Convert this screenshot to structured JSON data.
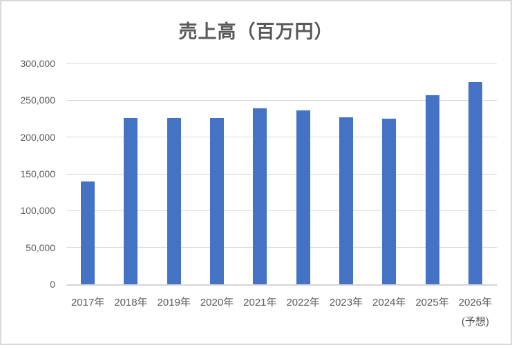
{
  "chart_data": {
    "type": "bar",
    "title": "売上高（百万円）",
    "categories": [
      "2017年",
      "2018年",
      "2019年",
      "2020年",
      "2021年",
      "2022年",
      "2023年",
      "2024年",
      "2025年",
      "2026年"
    ],
    "category_note": {
      "index": 9,
      "label": "(予想)"
    },
    "values": [
      140000,
      226000,
      226000,
      226000,
      239000,
      236000,
      227000,
      225000,
      257000,
      275000
    ],
    "series_name": "売上高",
    "xlabel": "",
    "ylabel": "",
    "ylim": [
      0,
      300000
    ],
    "yticks": [
      {
        "value": 0,
        "label": "0"
      },
      {
        "value": 50000,
        "label": "50,000"
      },
      {
        "value": 100000,
        "label": "100,000"
      },
      {
        "value": 150000,
        "label": "150,000"
      },
      {
        "value": 200000,
        "label": "200,000"
      },
      {
        "value": 250000,
        "label": "250,000"
      },
      {
        "value": 300000,
        "label": "300,000"
      }
    ],
    "grid": true,
    "legend": "none",
    "colors": {
      "bar": "#4472C4",
      "gridline": "#D9D9D9",
      "axis_line": "#D4D4D4",
      "text": "#595959",
      "title": "#595959",
      "chart_border": "#D9D9D9",
      "background": "#FFFFFF"
    }
  }
}
